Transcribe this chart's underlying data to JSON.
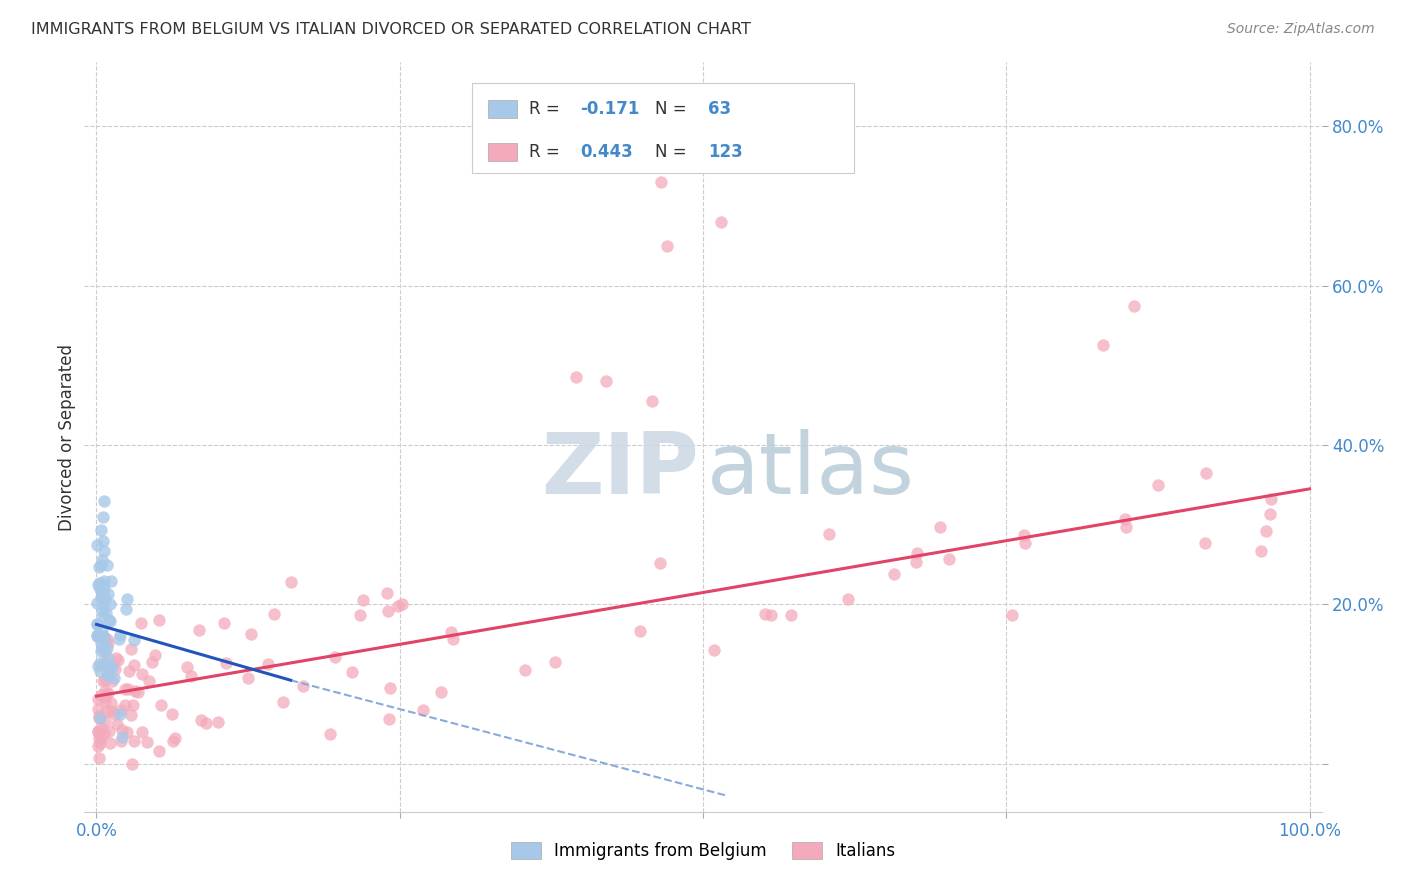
{
  "title": "IMMIGRANTS FROM BELGIUM VS ITALIAN DIVORCED OR SEPARATED CORRELATION CHART",
  "source": "Source: ZipAtlas.com",
  "ylabel": "Divorced or Separated",
  "belgium_color": "#a8c8e8",
  "italy_color": "#f4aabb",
  "belgium_line_color": "#2255bb",
  "italy_line_color": "#e04466",
  "belgium_dashed_color": "#88aadd",
  "grid_color": "#cccccc",
  "background_color": "#ffffff",
  "tick_color": "#4488cc",
  "title_color": "#333333",
  "source_color": "#888888",
  "R_color": "#4488cc",
  "label_color": "#333333",
  "belgium_R": "-0.171",
  "belgium_N": "63",
  "italy_R": "0.443",
  "italy_N": "123",
  "legend_belgium": "Immigrants from Belgium",
  "legend_italy": "Italians",
  "xlim": [
    -0.01,
    1.01
  ],
  "ylim": [
    -0.06,
    0.88
  ],
  "ytick_vals": [
    0.0,
    0.2,
    0.4,
    0.6,
    0.8
  ],
  "ytick_labels": [
    "",
    "20.0%",
    "40.0%",
    "60.0%",
    "80.0%"
  ],
  "xtick_vals": [
    0.0,
    0.25,
    0.5,
    0.75,
    1.0
  ],
  "xtick_labels": [
    "0.0%",
    "",
    "",
    "",
    "100.0%"
  ],
  "italy_trend": [
    0.0,
    1.0,
    0.085,
    0.345
  ],
  "belgium_solid": [
    0.0,
    0.175,
    0.16,
    0.105
  ],
  "belgium_dashed": [
    0.16,
    0.105,
    0.52,
    -0.04
  ]
}
